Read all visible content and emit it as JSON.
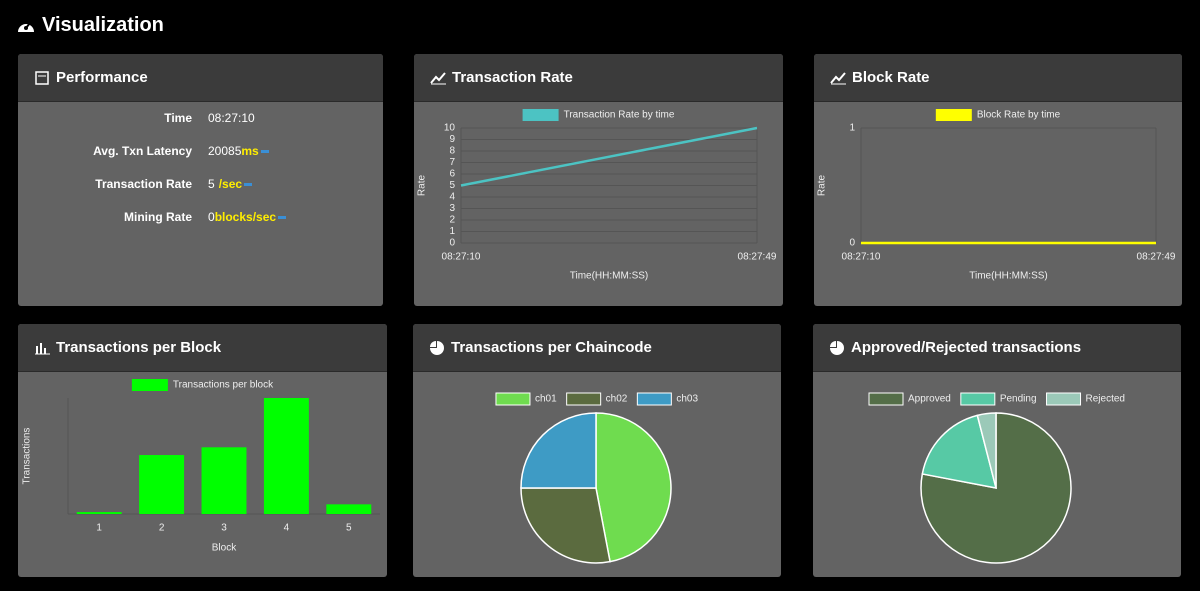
{
  "header": {
    "title": "Visualization"
  },
  "performance": {
    "title": "Performance",
    "rows": [
      {
        "label": "Time",
        "value": "08:27:10"
      },
      {
        "label": "Avg. Txn Latency",
        "value": "20085",
        "unit": "ms"
      },
      {
        "label": "Transaction Rate",
        "value": "5",
        "unit": "/sec"
      },
      {
        "label": "Mining Rate",
        "value": "0",
        "unit": "blocks/sec"
      }
    ]
  },
  "charts": [
    {
      "title": "Transaction Rate",
      "chart_data": {
        "type": "line",
        "x": [
          "08:27:10",
          "08:27:49"
        ],
        "x_label": "Time(HH:MM:SS)",
        "y_label": "Rate",
        "series": [
          {
            "name": "Transaction Rate by time",
            "color": "#4cc3c3",
            "values": [
              5,
              10
            ]
          }
        ],
        "ylim": [
          0,
          10
        ],
        "yticks": [
          0,
          1,
          2,
          3,
          4,
          5,
          6,
          7,
          8,
          9,
          10
        ],
        "grid": true
      }
    },
    {
      "title": "Block Rate",
      "chart_data": {
        "type": "line",
        "x": [
          "08:27:10",
          "08:27:49"
        ],
        "x_label": "Time(HH:MM:SS)",
        "y_label": "Rate",
        "series": [
          {
            "name": "Block Rate by time",
            "color": "#ffff00",
            "values": [
              0,
              0
            ]
          }
        ],
        "ylim": [
          0,
          1
        ],
        "yticks": [
          0,
          1
        ],
        "grid": true
      }
    },
    {
      "title": "Transactions per Block",
      "chart_data": {
        "type": "bar",
        "categories": [
          "1",
          "2",
          "3",
          "4",
          "5"
        ],
        "x_label": "Block",
        "y_label": "Transactions",
        "series": [
          {
            "name": "Transactions per block",
            "color": "#00ff00",
            "values": [
              0.2,
              6.1,
              6.9,
              12,
              1
            ]
          }
        ],
        "ylim": [
          0,
          12
        ]
      }
    },
    {
      "title": "Transactions per Chaincode",
      "chart_data": {
        "type": "pie",
        "categories": [
          "ch01",
          "ch02",
          "ch03"
        ],
        "values": [
          47,
          28,
          25
        ],
        "colors": [
          "#6fdc4f",
          "#5b6b3f",
          "#3e9bc5"
        ]
      }
    },
    {
      "title": "Approved/Rejected transactions",
      "chart_data": {
        "type": "pie",
        "categories": [
          "Approved",
          "Pending",
          "Rejected"
        ],
        "values": [
          78,
          18,
          4
        ],
        "colors": [
          "#546e48",
          "#57c9a5",
          "#9bc9b8"
        ]
      }
    }
  ]
}
